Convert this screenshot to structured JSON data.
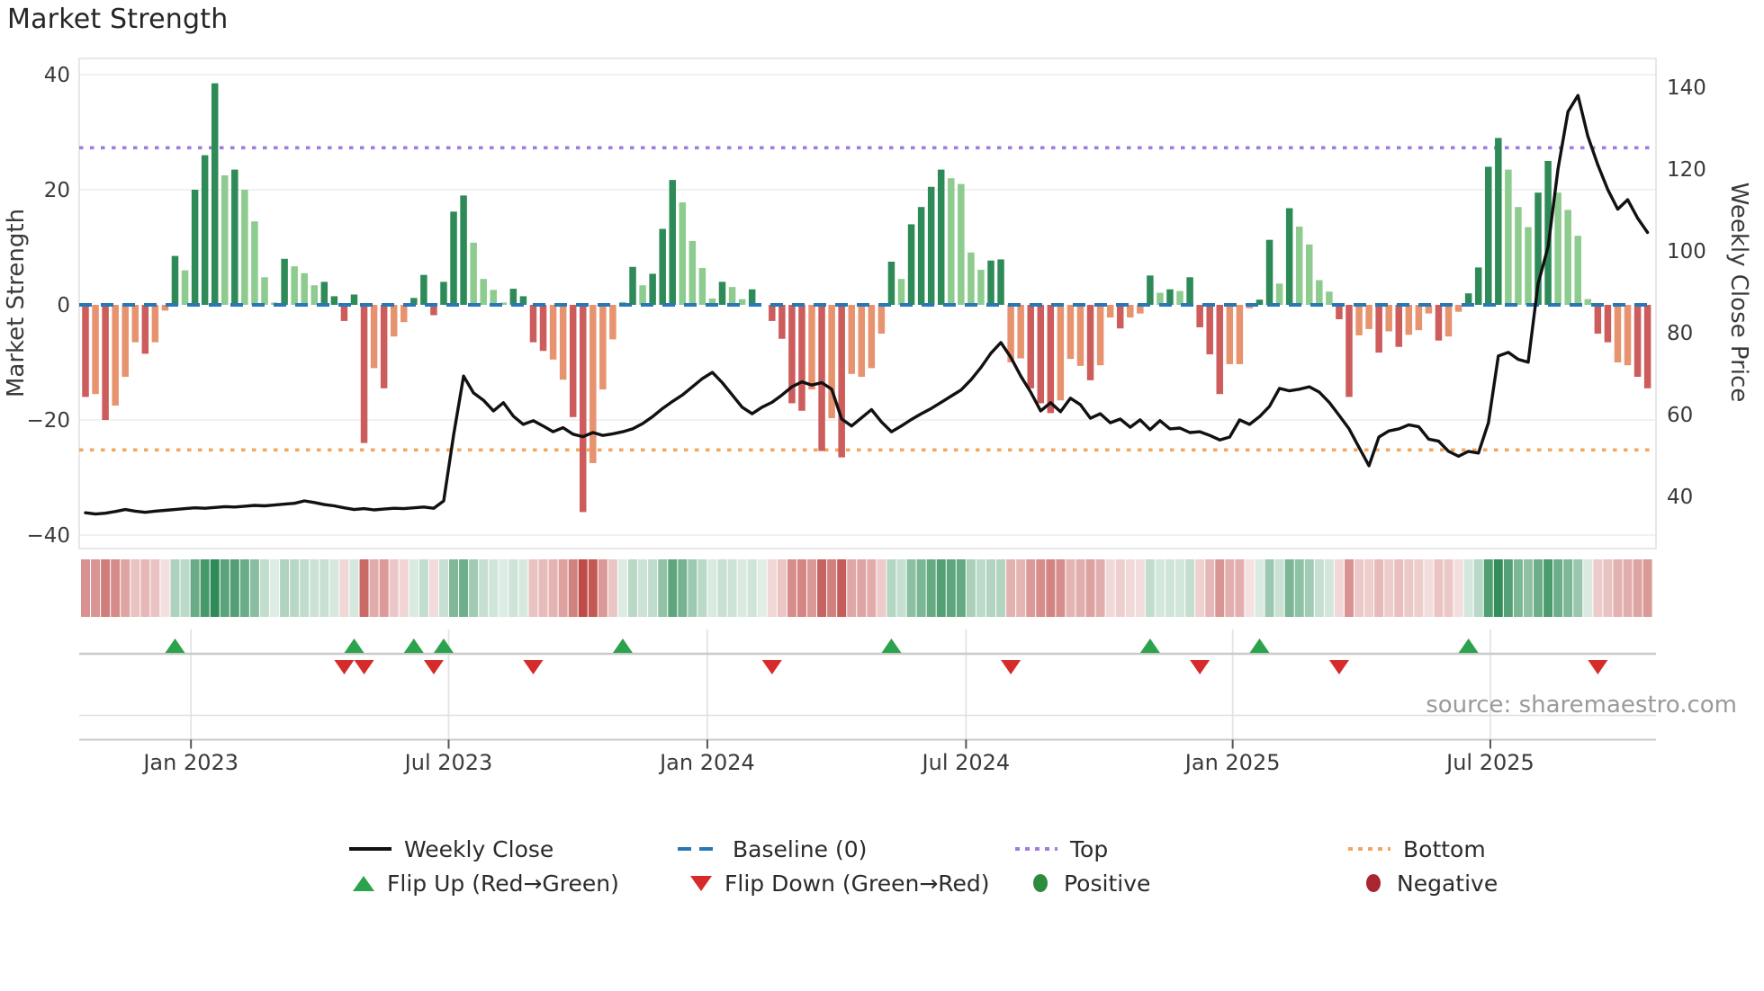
{
  "title": "Market Strength",
  "source": "source: sharemaestro.com",
  "axes": {
    "left_label": "Market Strength",
    "right_label": "Weekly Close Price",
    "left_ticks": [
      40,
      20,
      0,
      -20,
      -40
    ],
    "right_ticks": [
      140,
      120,
      100,
      80,
      60,
      40
    ],
    "x_ticks": [
      {
        "label": "Jan 2023",
        "week": 11.6
      },
      {
        "label": "Jul 2023",
        "week": 37.5
      },
      {
        "label": "Jan 2024",
        "week": 63.5
      },
      {
        "label": "Jul 2024",
        "week": 89.5
      },
      {
        "label": "Jan 2025",
        "week": 116.3
      },
      {
        "label": "Jul 2025",
        "week": 142.2
      }
    ]
  },
  "legend": {
    "row1": [
      {
        "id": "weekly-close",
        "label": "Weekly Close"
      },
      {
        "id": "baseline",
        "label": "Baseline (0)"
      },
      {
        "id": "top",
        "label": "Top"
      },
      {
        "id": "bottom",
        "label": "Bottom"
      }
    ],
    "row2": [
      {
        "id": "flip-up",
        "label": "Flip Up (Red→Green)"
      },
      {
        "id": "flip-down",
        "label": "Flip Down (Green→Red)"
      },
      {
        "id": "positive",
        "label": "Positive"
      },
      {
        "id": "negative",
        "label": "Negative"
      }
    ]
  },
  "colors": {
    "bar_dark_green": "#2e8b57",
    "bar_light_green": "#8ecb8e",
    "bar_dark_red": "#cd5c5c",
    "bar_salmon": "#e8936f",
    "baseline_blue": "#2878b5",
    "top_purple": "#9d7ede",
    "bottom_orange": "#f3a660",
    "price_line": "#111111",
    "flip_up_green": "#2ba24c",
    "flip_down_red": "#d62b2b",
    "positive_dot": "#2e8b3d",
    "negative_dot": "#a92531",
    "grid": "#efefef",
    "spine": "#e2e2e2",
    "tick_text": "#3a3a3a",
    "source_text": "#9a9a9a"
  },
  "chart_data": {
    "type": "bar",
    "subtype": "weekly-oscillator-with-price-line",
    "title": "Market Strength",
    "ylabel_left": "Market Strength",
    "ylabel_right": "Weekly Close Price",
    "left_ylim": [
      -43,
      43
    ],
    "right_ylim": [
      33,
      147
    ],
    "baseline": 0,
    "top_line": 27.3,
    "bottom_line": -25.2,
    "weeks": 158,
    "bars": [
      [
        -16,
        "d"
      ],
      [
        -15.5,
        "s"
      ],
      [
        -20,
        "d"
      ],
      [
        -17.5,
        "s"
      ],
      [
        -12.5,
        "s"
      ],
      [
        -6.5,
        "s"
      ],
      [
        -8.5,
        "d"
      ],
      [
        -6.5,
        "s"
      ],
      [
        -1,
        "s"
      ],
      [
        8.5,
        "d"
      ],
      [
        6,
        "l"
      ],
      [
        20,
        "d"
      ],
      [
        26,
        "d"
      ],
      [
        38.5,
        "d"
      ],
      [
        22.5,
        "l"
      ],
      [
        23.5,
        "d"
      ],
      [
        20,
        "l"
      ],
      [
        14.5,
        "l"
      ],
      [
        4.8,
        "l"
      ],
      [
        0.4,
        "l"
      ],
      [
        8,
        "d"
      ],
      [
        6.7,
        "l"
      ],
      [
        5.5,
        "l"
      ],
      [
        3.4,
        "l"
      ],
      [
        4,
        "d"
      ],
      [
        1.5,
        "d"
      ],
      [
        -2.8,
        "d"
      ],
      [
        1.8,
        "d"
      ],
      [
        -24,
        "d"
      ],
      [
        -11,
        "s"
      ],
      [
        -14.5,
        "d"
      ],
      [
        -5.5,
        "s"
      ],
      [
        -3,
        "s"
      ],
      [
        1.2,
        "d"
      ],
      [
        5.2,
        "d"
      ],
      [
        -1.8,
        "d"
      ],
      [
        4,
        "d"
      ],
      [
        16.2,
        "d"
      ],
      [
        19,
        "d"
      ],
      [
        10.8,
        "l"
      ],
      [
        4.5,
        "l"
      ],
      [
        2.6,
        "l"
      ],
      [
        0.4,
        "l"
      ],
      [
        2.8,
        "d"
      ],
      [
        1.5,
        "d"
      ],
      [
        -6.5,
        "d"
      ],
      [
        -8,
        "d"
      ],
      [
        -9.5,
        "s"
      ],
      [
        -13,
        "s"
      ],
      [
        -19.5,
        "d"
      ],
      [
        -36,
        "d"
      ],
      [
        -27.5,
        "s"
      ],
      [
        -14.7,
        "s"
      ],
      [
        -6,
        "s"
      ],
      [
        0.5,
        "l"
      ],
      [
        6.6,
        "d"
      ],
      [
        3.4,
        "l"
      ],
      [
        5.4,
        "d"
      ],
      [
        13.2,
        "d"
      ],
      [
        21.7,
        "d"
      ],
      [
        17.8,
        "l"
      ],
      [
        11.1,
        "l"
      ],
      [
        6.4,
        "l"
      ],
      [
        1.1,
        "l"
      ],
      [
        4,
        "d"
      ],
      [
        3.1,
        "l"
      ],
      [
        1,
        "l"
      ],
      [
        2.7,
        "d"
      ],
      [
        0,
        "l"
      ],
      [
        -2.8,
        "d"
      ],
      [
        -5.9,
        "d"
      ],
      [
        -17.1,
        "d"
      ],
      [
        -18.4,
        "d"
      ],
      [
        -14.7,
        "s"
      ],
      [
        -25.4,
        "d"
      ],
      [
        -19.7,
        "s"
      ],
      [
        -26.5,
        "d"
      ],
      [
        -12,
        "s"
      ],
      [
        -12.5,
        "s"
      ],
      [
        -11,
        "s"
      ],
      [
        -5,
        "s"
      ],
      [
        7.5,
        "d"
      ],
      [
        4.5,
        "l"
      ],
      [
        14,
        "d"
      ],
      [
        17,
        "d"
      ],
      [
        20.5,
        "d"
      ],
      [
        23.5,
        "d"
      ],
      [
        22,
        "l"
      ],
      [
        21,
        "l"
      ],
      [
        9.1,
        "l"
      ],
      [
        6.1,
        "l"
      ],
      [
        7.7,
        "d"
      ],
      [
        7.9,
        "d"
      ],
      [
        -10,
        "s"
      ],
      [
        -9.3,
        "s"
      ],
      [
        -14.5,
        "d"
      ],
      [
        -17.1,
        "d"
      ],
      [
        -18.8,
        "d"
      ],
      [
        -16.6,
        "s"
      ],
      [
        -9.4,
        "s"
      ],
      [
        -10.6,
        "s"
      ],
      [
        -13.1,
        "d"
      ],
      [
        -10.5,
        "s"
      ],
      [
        -2.2,
        "s"
      ],
      [
        -4.1,
        "d"
      ],
      [
        -2.2,
        "s"
      ],
      [
        -1.5,
        "s"
      ],
      [
        5.1,
        "d"
      ],
      [
        2.1,
        "l"
      ],
      [
        2.7,
        "d"
      ],
      [
        2.4,
        "l"
      ],
      [
        4.8,
        "d"
      ],
      [
        -3.9,
        "d"
      ],
      [
        -8.6,
        "d"
      ],
      [
        -15.5,
        "d"
      ],
      [
        -10.3,
        "s"
      ],
      [
        -10.3,
        "s"
      ],
      [
        -0.6,
        "s"
      ],
      [
        0.9,
        "d"
      ],
      [
        11.3,
        "d"
      ],
      [
        3.7,
        "l"
      ],
      [
        16.8,
        "d"
      ],
      [
        13.6,
        "l"
      ],
      [
        10.5,
        "l"
      ],
      [
        4.3,
        "l"
      ],
      [
        2.3,
        "l"
      ],
      [
        -2.5,
        "d"
      ],
      [
        -16,
        "d"
      ],
      [
        -5.3,
        "s"
      ],
      [
        -4.2,
        "s"
      ],
      [
        -8.3,
        "d"
      ],
      [
        -4.6,
        "s"
      ],
      [
        -7.3,
        "d"
      ],
      [
        -5.2,
        "s"
      ],
      [
        -4.4,
        "s"
      ],
      [
        -1.5,
        "s"
      ],
      [
        -6.2,
        "d"
      ],
      [
        -5.5,
        "s"
      ],
      [
        -1.2,
        "s"
      ],
      [
        2,
        "d"
      ],
      [
        6.5,
        "d"
      ],
      [
        24,
        "d"
      ],
      [
        29,
        "d"
      ],
      [
        23.5,
        "l"
      ],
      [
        17,
        "l"
      ],
      [
        13.5,
        "l"
      ],
      [
        19.5,
        "d"
      ],
      [
        25,
        "d"
      ],
      [
        19.5,
        "l"
      ],
      [
        16.5,
        "l"
      ],
      [
        12,
        "l"
      ],
      [
        1,
        "l"
      ],
      [
        -5,
        "d"
      ],
      [
        -6.5,
        "d"
      ],
      [
        -10,
        "s"
      ],
      [
        -10.5,
        "s"
      ],
      [
        -12.5,
        "d"
      ],
      [
        -14.5,
        "d"
      ]
    ],
    "price": [
      36.0,
      35.7,
      35.9,
      36.3,
      36.8,
      36.4,
      36.1,
      36.4,
      36.6,
      36.8,
      37.0,
      37.2,
      37.1,
      37.3,
      37.5,
      37.4,
      37.6,
      37.8,
      37.7,
      37.9,
      38.1,
      38.3,
      38.9,
      38.5,
      38.0,
      37.7,
      37.2,
      36.8,
      37.0,
      36.7,
      36.9,
      37.1,
      37.0,
      37.2,
      37.4,
      37.1,
      38.9,
      55.0,
      69.4,
      65.3,
      63.5,
      60.9,
      62.9,
      59.6,
      57.6,
      58.5,
      57.2,
      55.8,
      56.8,
      55.2,
      54.6,
      55.6,
      54.9,
      55.3,
      55.8,
      56.5,
      57.8,
      59.5,
      61.5,
      63.2,
      64.8,
      66.8,
      68.8,
      70.3,
      67.8,
      64.8,
      61.8,
      60.2,
      61.8,
      63.0,
      64.8,
      66.8,
      68.0,
      67.2,
      67.8,
      66.2,
      58.9,
      57.2,
      59.2,
      61.2,
      58.2,
      55.8,
      57.2,
      58.8,
      60.2,
      61.5,
      63.0,
      64.5,
      66.0,
      68.5,
      71.5,
      75.0,
      77.6,
      74.0,
      69.4,
      65.5,
      60.9,
      62.9,
      60.7,
      64.0,
      62.4,
      59.1,
      60.2,
      58.0,
      58.9,
      56.9,
      58.7,
      56.3,
      58.5,
      56.5,
      56.7,
      55.6,
      55.8,
      54.9,
      53.8,
      54.5,
      58.7,
      57.6,
      59.5,
      62.0,
      66.4,
      65.8,
      66.2,
      66.8,
      65.5,
      63.0,
      59.8,
      56.5,
      52.0,
      47.5,
      54.5,
      56.0,
      56.5,
      57.5,
      57.0,
      54.0,
      53.5,
      51.0,
      49.8,
      51.0,
      50.6,
      58.0,
      74.3,
      75.2,
      73.5,
      72.8,
      92.0,
      101.0,
      120.0,
      134.0,
      138.0,
      128.0,
      121.0,
      115.0,
      110.2,
      112.5,
      108.0,
      104.5
    ],
    "flip_up_weeks": [
      10,
      28,
      34,
      37,
      55,
      82,
      108,
      119,
      140
    ],
    "flip_down_weeks": [
      27,
      29,
      36,
      46,
      70,
      94,
      113,
      127,
      153
    ],
    "legend_entries": [
      "Weekly Close",
      "Baseline (0)",
      "Top",
      "Bottom",
      "Flip Up (Red→Green)",
      "Flip Down (Green→Red)",
      "Positive",
      "Negative"
    ],
    "grid": true,
    "legend_position": "bottom"
  }
}
